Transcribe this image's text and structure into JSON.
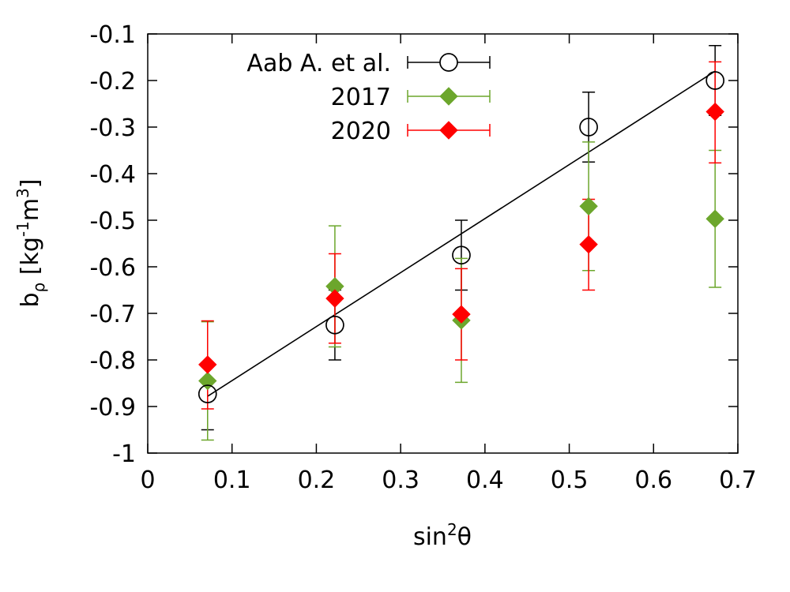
{
  "chart_data": {
    "type": "scatter",
    "xlabel": {
      "base": "sin",
      "sup": "2",
      "tail": "θ"
    },
    "ylabel": {
      "b": "b",
      "sub": "ρ",
      "mid": " [kg",
      "sup1": "-1",
      "m": "m",
      "sup2": "3",
      "end": "]"
    },
    "xlim": [
      0,
      0.7
    ],
    "ylim": [
      -1,
      -0.1
    ],
    "xticks": [
      0,
      0.1,
      0.2,
      0.3,
      0.4,
      0.5,
      0.6,
      0.7
    ],
    "xtick_labels": [
      "0",
      "0.1",
      "0.2",
      "0.3",
      "0.4",
      "0.5",
      "0.6",
      "0.7"
    ],
    "yticks": [
      -1,
      -0.9,
      -0.8,
      -0.7,
      -0.6,
      -0.5,
      -0.4,
      -0.3,
      -0.2,
      -0.1
    ],
    "ytick_labels": [
      "-1",
      "-0.9",
      "-0.8",
      "-0.7",
      "-0.6",
      "-0.5",
      "-0.4",
      "-0.3",
      "-0.2",
      "-0.1"
    ],
    "grid": false,
    "legend_position": "top-center",
    "series": [
      {
        "name": "Aab A. et al.",
        "marker": "open-circle",
        "color": "#000000",
        "points": [
          {
            "x": 0.071,
            "y": -0.873,
            "ylow": -0.95,
            "yhigh": -0.805
          },
          {
            "x": 0.222,
            "y": -0.725,
            "ylow": -0.8,
            "yhigh": -0.65
          },
          {
            "x": 0.372,
            "y": -0.575,
            "ylow": -0.65,
            "yhigh": -0.5
          },
          {
            "x": 0.523,
            "y": -0.3,
            "ylow": -0.375,
            "yhigh": -0.225
          },
          {
            "x": 0.673,
            "y": -0.2,
            "ylow": -0.275,
            "yhigh": -0.125
          }
        ]
      },
      {
        "name": "2017",
        "marker": "diamond",
        "color": "#6ca62c",
        "points": [
          {
            "x": 0.071,
            "y": -0.845,
            "ylow": -0.972,
            "yhigh": -0.718
          },
          {
            "x": 0.222,
            "y": -0.642,
            "ylow": -0.772,
            "yhigh": -0.512
          },
          {
            "x": 0.372,
            "y": -0.715,
            "ylow": -0.848,
            "yhigh": -0.582
          },
          {
            "x": 0.523,
            "y": -0.47,
            "ylow": -0.608,
            "yhigh": -0.332
          },
          {
            "x": 0.673,
            "y": -0.497,
            "ylow": -0.644,
            "yhigh": -0.35
          }
        ]
      },
      {
        "name": "2020",
        "marker": "diamond",
        "color": "#ff0000",
        "points": [
          {
            "x": 0.071,
            "y": -0.81,
            "ylow": -0.905,
            "yhigh": -0.716
          },
          {
            "x": 0.222,
            "y": -0.668,
            "ylow": -0.764,
            "yhigh": -0.572
          },
          {
            "x": 0.372,
            "y": -0.702,
            "ylow": -0.8,
            "yhigh": -0.604
          },
          {
            "x": 0.523,
            "y": -0.552,
            "ylow": -0.65,
            "yhigh": -0.455
          },
          {
            "x": 0.673,
            "y": -0.267,
            "ylow": -0.377,
            "yhigh": -0.16
          }
        ]
      }
    ],
    "fit_line": {
      "color": "#000000",
      "x": [
        0.071,
        0.673
      ],
      "y": [
        -0.878,
        -0.18
      ]
    }
  }
}
